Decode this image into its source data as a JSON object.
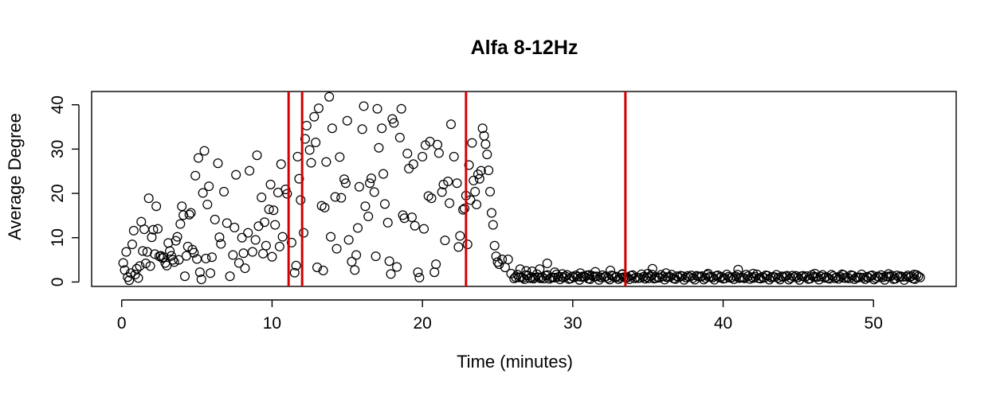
{
  "chart_data": {
    "type": "scatter",
    "title": "Alfa 8-12Hz",
    "xlabel": "Time (minutes)",
    "ylabel": "Average Degree",
    "xlim": [
      -2,
      55.5
    ],
    "ylim": [
      -1,
      43
    ],
    "x_ticks": [
      0,
      10,
      20,
      30,
      40,
      50
    ],
    "y_ticks": [
      0,
      10,
      20,
      30,
      40
    ],
    "marker": "open-circle",
    "marker_color": "#000000",
    "vlines": {
      "color": "#d40000",
      "x": [
        11.1,
        12.0,
        22.9,
        33.5
      ]
    },
    "points": [
      [
        0.1,
        4.3
      ],
      [
        0.2,
        2.7
      ],
      [
        0.3,
        6.8
      ],
      [
        0.4,
        1.1
      ],
      [
        0.5,
        0.4
      ],
      [
        0.6,
        2.0
      ],
      [
        0.7,
        8.5
      ],
      [
        0.8,
        11.6
      ],
      [
        0.9,
        1.7
      ],
      [
        1.0,
        3.0
      ],
      [
        1.1,
        0.9
      ],
      [
        1.2,
        3.6
      ],
      [
        1.3,
        13.6
      ],
      [
        1.4,
        7.0
      ],
      [
        1.5,
        11.9
      ],
      [
        1.6,
        4.2
      ],
      [
        1.7,
        6.8
      ],
      [
        1.8,
        18.9
      ],
      [
        1.9,
        3.6
      ],
      [
        2.0,
        10.1
      ],
      [
        2.1,
        11.8
      ],
      [
        2.2,
        6.3
      ],
      [
        2.3,
        17.1
      ],
      [
        2.4,
        12.0
      ],
      [
        2.5,
        5.8
      ],
      [
        2.6,
        5.9
      ],
      [
        2.7,
        5.4
      ],
      [
        2.8,
        5.6
      ],
      [
        2.9,
        4.3
      ],
      [
        3.0,
        3.7
      ],
      [
        3.1,
        8.8
      ],
      [
        3.2,
        7.0
      ],
      [
        3.3,
        5.9
      ],
      [
        3.4,
        5.0
      ],
      [
        3.5,
        4.5
      ],
      [
        3.6,
        9.3
      ],
      [
        3.7,
        10.2
      ],
      [
        3.8,
        5.0
      ],
      [
        3.9,
        13.1
      ],
      [
        4.0,
        17.1
      ],
      [
        4.1,
        15.1
      ],
      [
        4.2,
        1.3
      ],
      [
        4.3,
        5.9
      ],
      [
        4.4,
        8.0
      ],
      [
        4.5,
        15.2
      ],
      [
        4.6,
        15.6
      ],
      [
        4.7,
        7.3
      ],
      [
        4.8,
        6.6
      ],
      [
        4.9,
        24.0
      ],
      [
        5.0,
        5.2
      ],
      [
        5.1,
        28.0
      ],
      [
        5.2,
        2.2
      ],
      [
        5.3,
        0.6
      ],
      [
        5.4,
        20.1
      ],
      [
        5.5,
        29.6
      ],
      [
        5.6,
        5.3
      ],
      [
        5.7,
        17.5
      ],
      [
        5.8,
        21.6
      ],
      [
        5.9,
        2.0
      ],
      [
        6.0,
        5.6
      ],
      [
        6.2,
        14.1
      ],
      [
        6.4,
        26.8
      ],
      [
        6.5,
        10.1
      ],
      [
        6.6,
        8.6
      ],
      [
        6.8,
        20.4
      ],
      [
        7.0,
        13.3
      ],
      [
        7.2,
        1.3
      ],
      [
        7.4,
        6.1
      ],
      [
        7.5,
        12.3
      ],
      [
        7.6,
        24.2
      ],
      [
        7.8,
        4.3
      ],
      [
        8.0,
        10.0
      ],
      [
        8.1,
        6.5
      ],
      [
        8.2,
        3.1
      ],
      [
        8.4,
        11.1
      ],
      [
        8.5,
        25.1
      ],
      [
        8.7,
        6.8
      ],
      [
        8.9,
        9.5
      ],
      [
        9.0,
        28.6
      ],
      [
        9.1,
        12.6
      ],
      [
        9.3,
        19.1
      ],
      [
        9.4,
        6.4
      ],
      [
        9.5,
        13.5
      ],
      [
        9.6,
        8.2
      ],
      [
        9.8,
        16.4
      ],
      [
        9.9,
        22.0
      ],
      [
        10.0,
        5.7
      ],
      [
        10.1,
        16.2
      ],
      [
        10.2,
        12.9
      ],
      [
        10.4,
        20.2
      ],
      [
        10.5,
        8.0
      ],
      [
        10.6,
        26.6
      ],
      [
        10.7,
        10.2
      ],
      [
        10.9,
        20.9
      ],
      [
        11.0,
        19.9
      ],
      [
        11.3,
        8.9
      ],
      [
        11.5,
        2.1
      ],
      [
        11.6,
        3.7
      ],
      [
        11.7,
        28.3
      ],
      [
        11.8,
        23.3
      ],
      [
        11.9,
        18.5
      ],
      [
        12.1,
        11.1
      ],
      [
        12.2,
        32.3
      ],
      [
        12.3,
        35.3
      ],
      [
        12.5,
        29.8
      ],
      [
        12.6,
        26.9
      ],
      [
        12.8,
        37.3
      ],
      [
        12.9,
        31.5
      ],
      [
        13.0,
        3.3
      ],
      [
        13.1,
        39.2
      ],
      [
        13.3,
        17.2
      ],
      [
        13.4,
        2.6
      ],
      [
        13.5,
        16.8
      ],
      [
        13.6,
        27.1
      ],
      [
        13.8,
        41.8
      ],
      [
        13.9,
        10.2
      ],
      [
        14.0,
        34.7
      ],
      [
        14.2,
        19.2
      ],
      [
        14.3,
        7.5
      ],
      [
        14.5,
        28.2
      ],
      [
        14.6,
        19.0
      ],
      [
        14.8,
        23.2
      ],
      [
        14.9,
        22.3
      ],
      [
        15.0,
        36.4
      ],
      [
        15.1,
        9.5
      ],
      [
        15.3,
        4.6
      ],
      [
        15.5,
        2.7
      ],
      [
        15.6,
        6.1
      ],
      [
        15.7,
        12.2
      ],
      [
        15.8,
        21.5
      ],
      [
        16.0,
        34.5
      ],
      [
        16.1,
        39.7
      ],
      [
        16.2,
        17.1
      ],
      [
        16.4,
        14.8
      ],
      [
        16.5,
        22.3
      ],
      [
        16.6,
        23.4
      ],
      [
        16.8,
        20.3
      ],
      [
        16.9,
        5.8
      ],
      [
        17.0,
        39.1
      ],
      [
        17.1,
        30.3
      ],
      [
        17.3,
        34.7
      ],
      [
        17.4,
        24.4
      ],
      [
        17.5,
        17.6
      ],
      [
        17.7,
        13.4
      ],
      [
        17.8,
        4.7
      ],
      [
        17.9,
        1.8
      ],
      [
        18.0,
        36.8
      ],
      [
        18.1,
        35.9
      ],
      [
        18.3,
        3.4
      ],
      [
        18.5,
        32.6
      ],
      [
        18.6,
        39.1
      ],
      [
        18.7,
        15.1
      ],
      [
        18.8,
        14.4
      ],
      [
        19.0,
        29.0
      ],
      [
        19.1,
        25.6
      ],
      [
        19.3,
        14.6
      ],
      [
        19.4,
        26.6
      ],
      [
        19.5,
        12.7
      ],
      [
        19.7,
        2.2
      ],
      [
        19.8,
        1.0
      ],
      [
        20.0,
        28.3
      ],
      [
        20.1,
        12.0
      ],
      [
        20.2,
        30.9
      ],
      [
        20.4,
        19.4
      ],
      [
        20.5,
        31.7
      ],
      [
        20.6,
        18.9
      ],
      [
        20.8,
        2.2
      ],
      [
        20.9,
        4.0
      ],
      [
        21.0,
        31.0
      ],
      [
        21.1,
        29.1
      ],
      [
        21.3,
        20.3
      ],
      [
        21.4,
        22.0
      ],
      [
        21.5,
        9.4
      ],
      [
        21.7,
        22.7
      ],
      [
        21.8,
        17.8
      ],
      [
        21.9,
        35.6
      ],
      [
        22.1,
        28.3
      ],
      [
        22.3,
        22.3
      ],
      [
        22.4,
        7.9
      ],
      [
        22.5,
        10.4
      ],
      [
        22.7,
        16.3
      ],
      [
        22.8,
        16.6
      ],
      [
        22.9,
        19.5
      ],
      [
        23.0,
        8.5
      ],
      [
        23.1,
        26.4
      ],
      [
        23.2,
        18.5
      ],
      [
        23.3,
        31.4
      ],
      [
        23.4,
        22.9
      ],
      [
        23.5,
        20.4
      ],
      [
        23.6,
        17.5
      ],
      [
        23.7,
        24.3
      ],
      [
        23.8,
        23.3
      ],
      [
        23.9,
        25.1
      ],
      [
        24.0,
        34.7
      ],
      [
        24.1,
        33.0
      ],
      [
        24.2,
        31.1
      ],
      [
        24.3,
        28.8
      ],
      [
        24.4,
        25.2
      ],
      [
        24.5,
        20.4
      ],
      [
        24.6,
        15.6
      ],
      [
        24.7,
        12.9
      ],
      [
        24.8,
        8.2
      ],
      [
        24.9,
        5.8
      ],
      [
        25.0,
        4.5
      ],
      [
        25.1,
        4.0
      ],
      [
        25.3,
        5.1
      ],
      [
        25.5,
        3.3
      ],
      [
        25.7,
        5.1
      ],
      [
        25.9,
        1.9
      ],
      [
        26.1,
        0.8
      ]
    ],
    "tail": {
      "x_start": 26.2,
      "x_end": 53.2,
      "step": 0.118,
      "base": 1.1,
      "amplitude": 0.65,
      "spikes": [
        [
          26.5,
          2.9
        ],
        [
          26.9,
          2.5
        ],
        [
          27.3,
          2.4
        ],
        [
          27.8,
          2.9
        ],
        [
          28.3,
          4.2
        ],
        [
          28.8,
          2.2
        ],
        [
          29.3,
          1.8
        ],
        [
          30.5,
          2.0
        ],
        [
          31.1,
          1.6
        ],
        [
          31.5,
          2.3
        ],
        [
          32.5,
          2.6
        ],
        [
          33.3,
          1.8
        ],
        [
          35.0,
          1.9
        ],
        [
          35.3,
          3.0
        ],
        [
          36.2,
          2.0
        ],
        [
          39.0,
          1.9
        ],
        [
          41.0,
          2.8
        ],
        [
          42.0,
          1.9
        ],
        [
          46.1,
          1.9
        ],
        [
          48.0,
          1.6
        ],
        [
          51.0,
          1.8
        ],
        [
          52.7,
          1.7
        ]
      ]
    }
  }
}
